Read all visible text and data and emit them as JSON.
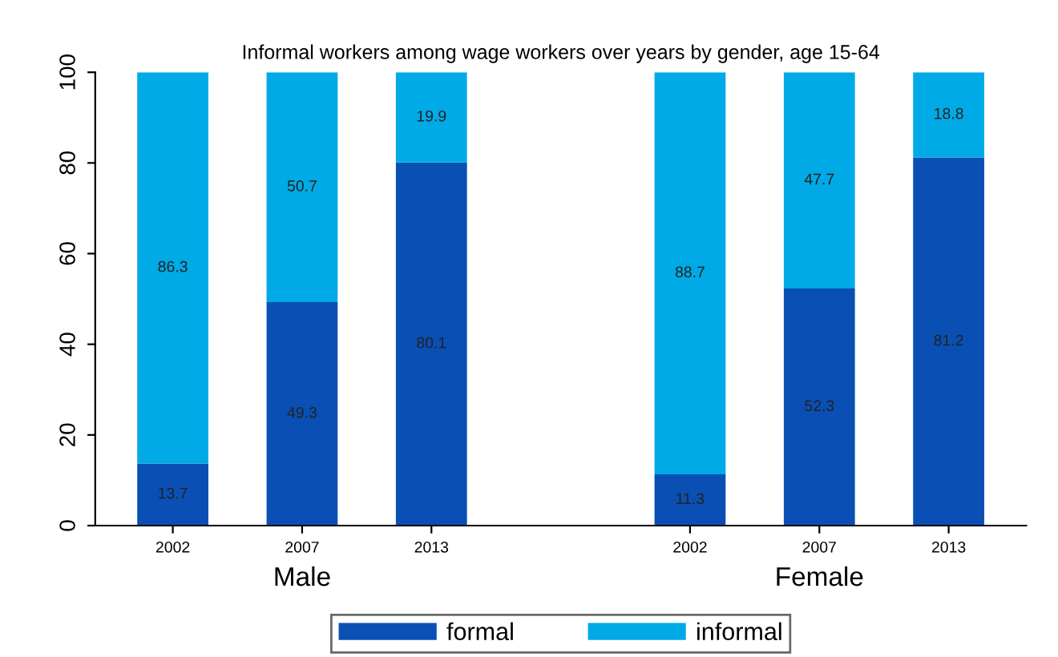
{
  "chart_data": {
    "type": "bar",
    "title": "Informal workers among wage workers over years by gender, age 15-64",
    "categories": [
      "2002",
      "2007",
      "2013",
      null,
      "2002",
      "2007",
      "2013"
    ],
    "series": [
      {
        "name": "formal",
        "color": "#0a50b4",
        "values": [
          13.7,
          49.3,
          80.1,
          null,
          11.3,
          52.3,
          81.2
        ]
      },
      {
        "name": "informal",
        "color": "#00aae6",
        "values": [
          86.3,
          50.7,
          19.9,
          null,
          88.7,
          47.7,
          18.8
        ]
      }
    ],
    "stacked": true,
    "data_labels": true,
    "ylim": [
      0,
      100
    ],
    "yticks": [
      0,
      20,
      40,
      60,
      80,
      100
    ],
    "grid": false,
    "legend": "bottom",
    "annotations": [
      "Male",
      "Female"
    ]
  }
}
